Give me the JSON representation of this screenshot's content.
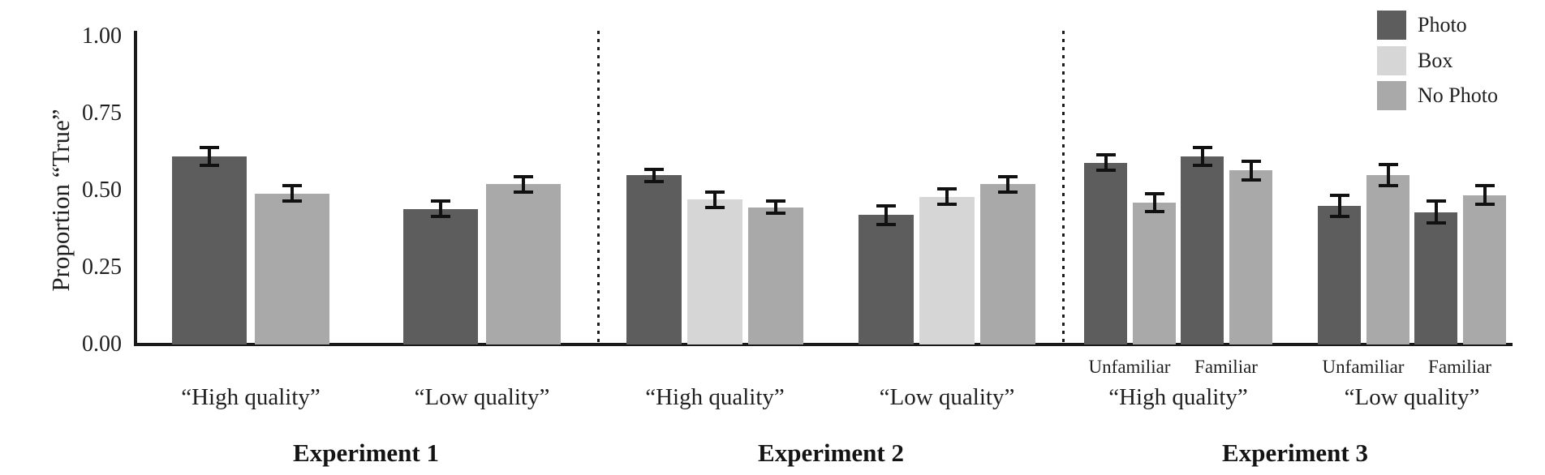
{
  "chart_data": {
    "type": "bar",
    "title": "",
    "ylabel": "Proportion “True”",
    "xlabel": "",
    "ylim": [
      0,
      1
    ],
    "yticks": [
      "1.00",
      "0.75",
      "0.50",
      "0.25",
      "0.00"
    ],
    "grid": false,
    "legend_position": "top-right",
    "legend": [
      {
        "label": "Photo",
        "color": "#5d5d5d"
      },
      {
        "label": "Box",
        "color": "#d6d6d6"
      },
      {
        "label": "No Photo",
        "color": "#a9a9a9"
      }
    ],
    "panels": [
      {
        "title": "Experiment 1",
        "groups": [
          {
            "label": "“High quality”",
            "bars": [
              {
                "series": "Photo",
                "value": 0.61,
                "error": 0.035
              },
              {
                "series": "No Photo",
                "value": 0.49,
                "error": 0.03
              }
            ]
          },
          {
            "label": "“Low quality”",
            "bars": [
              {
                "series": "Photo",
                "value": 0.44,
                "error": 0.03
              },
              {
                "series": "No Photo",
                "value": 0.52,
                "error": 0.03
              }
            ]
          }
        ]
      },
      {
        "title": "Experiment 2",
        "groups": [
          {
            "label": "“High quality”",
            "bars": [
              {
                "series": "Photo",
                "value": 0.55,
                "error": 0.025
              },
              {
                "series": "Box",
                "value": 0.47,
                "error": 0.03
              },
              {
                "series": "No Photo",
                "value": 0.445,
                "error": 0.025
              }
            ]
          },
          {
            "label": "“Low quality”",
            "bars": [
              {
                "series": "Photo",
                "value": 0.42,
                "error": 0.035
              },
              {
                "series": "Box",
                "value": 0.48,
                "error": 0.03
              },
              {
                "series": "No Photo",
                "value": 0.52,
                "error": 0.03
              }
            ]
          }
        ]
      },
      {
        "title": "Experiment 3",
        "groups": [
          {
            "label": "“High quality”",
            "sublabels": [
              "Unfamiliar",
              "Familiar"
            ],
            "bars": [
              {
                "series": "Photo",
                "sub": "Unfamiliar",
                "value": 0.59,
                "error": 0.03
              },
              {
                "series": "No Photo",
                "sub": "Unfamiliar",
                "value": 0.46,
                "error": 0.035
              },
              {
                "series": "Photo",
                "sub": "Familiar",
                "value": 0.61,
                "error": 0.035
              },
              {
                "series": "No Photo",
                "sub": "Familiar",
                "value": 0.565,
                "error": 0.035
              }
            ]
          },
          {
            "label": "“Low quality”",
            "sublabels": [
              "Unfamiliar",
              "Familiar"
            ],
            "bars": [
              {
                "series": "Photo",
                "sub": "Unfamiliar",
                "value": 0.45,
                "error": 0.04
              },
              {
                "series": "No Photo",
                "sub": "Unfamiliar",
                "value": 0.55,
                "error": 0.04
              },
              {
                "series": "Photo",
                "sub": "Familiar",
                "value": 0.43,
                "error": 0.04
              },
              {
                "series": "No Photo",
                "sub": "Familiar",
                "value": 0.485,
                "error": 0.035
              }
            ]
          }
        ]
      }
    ]
  }
}
